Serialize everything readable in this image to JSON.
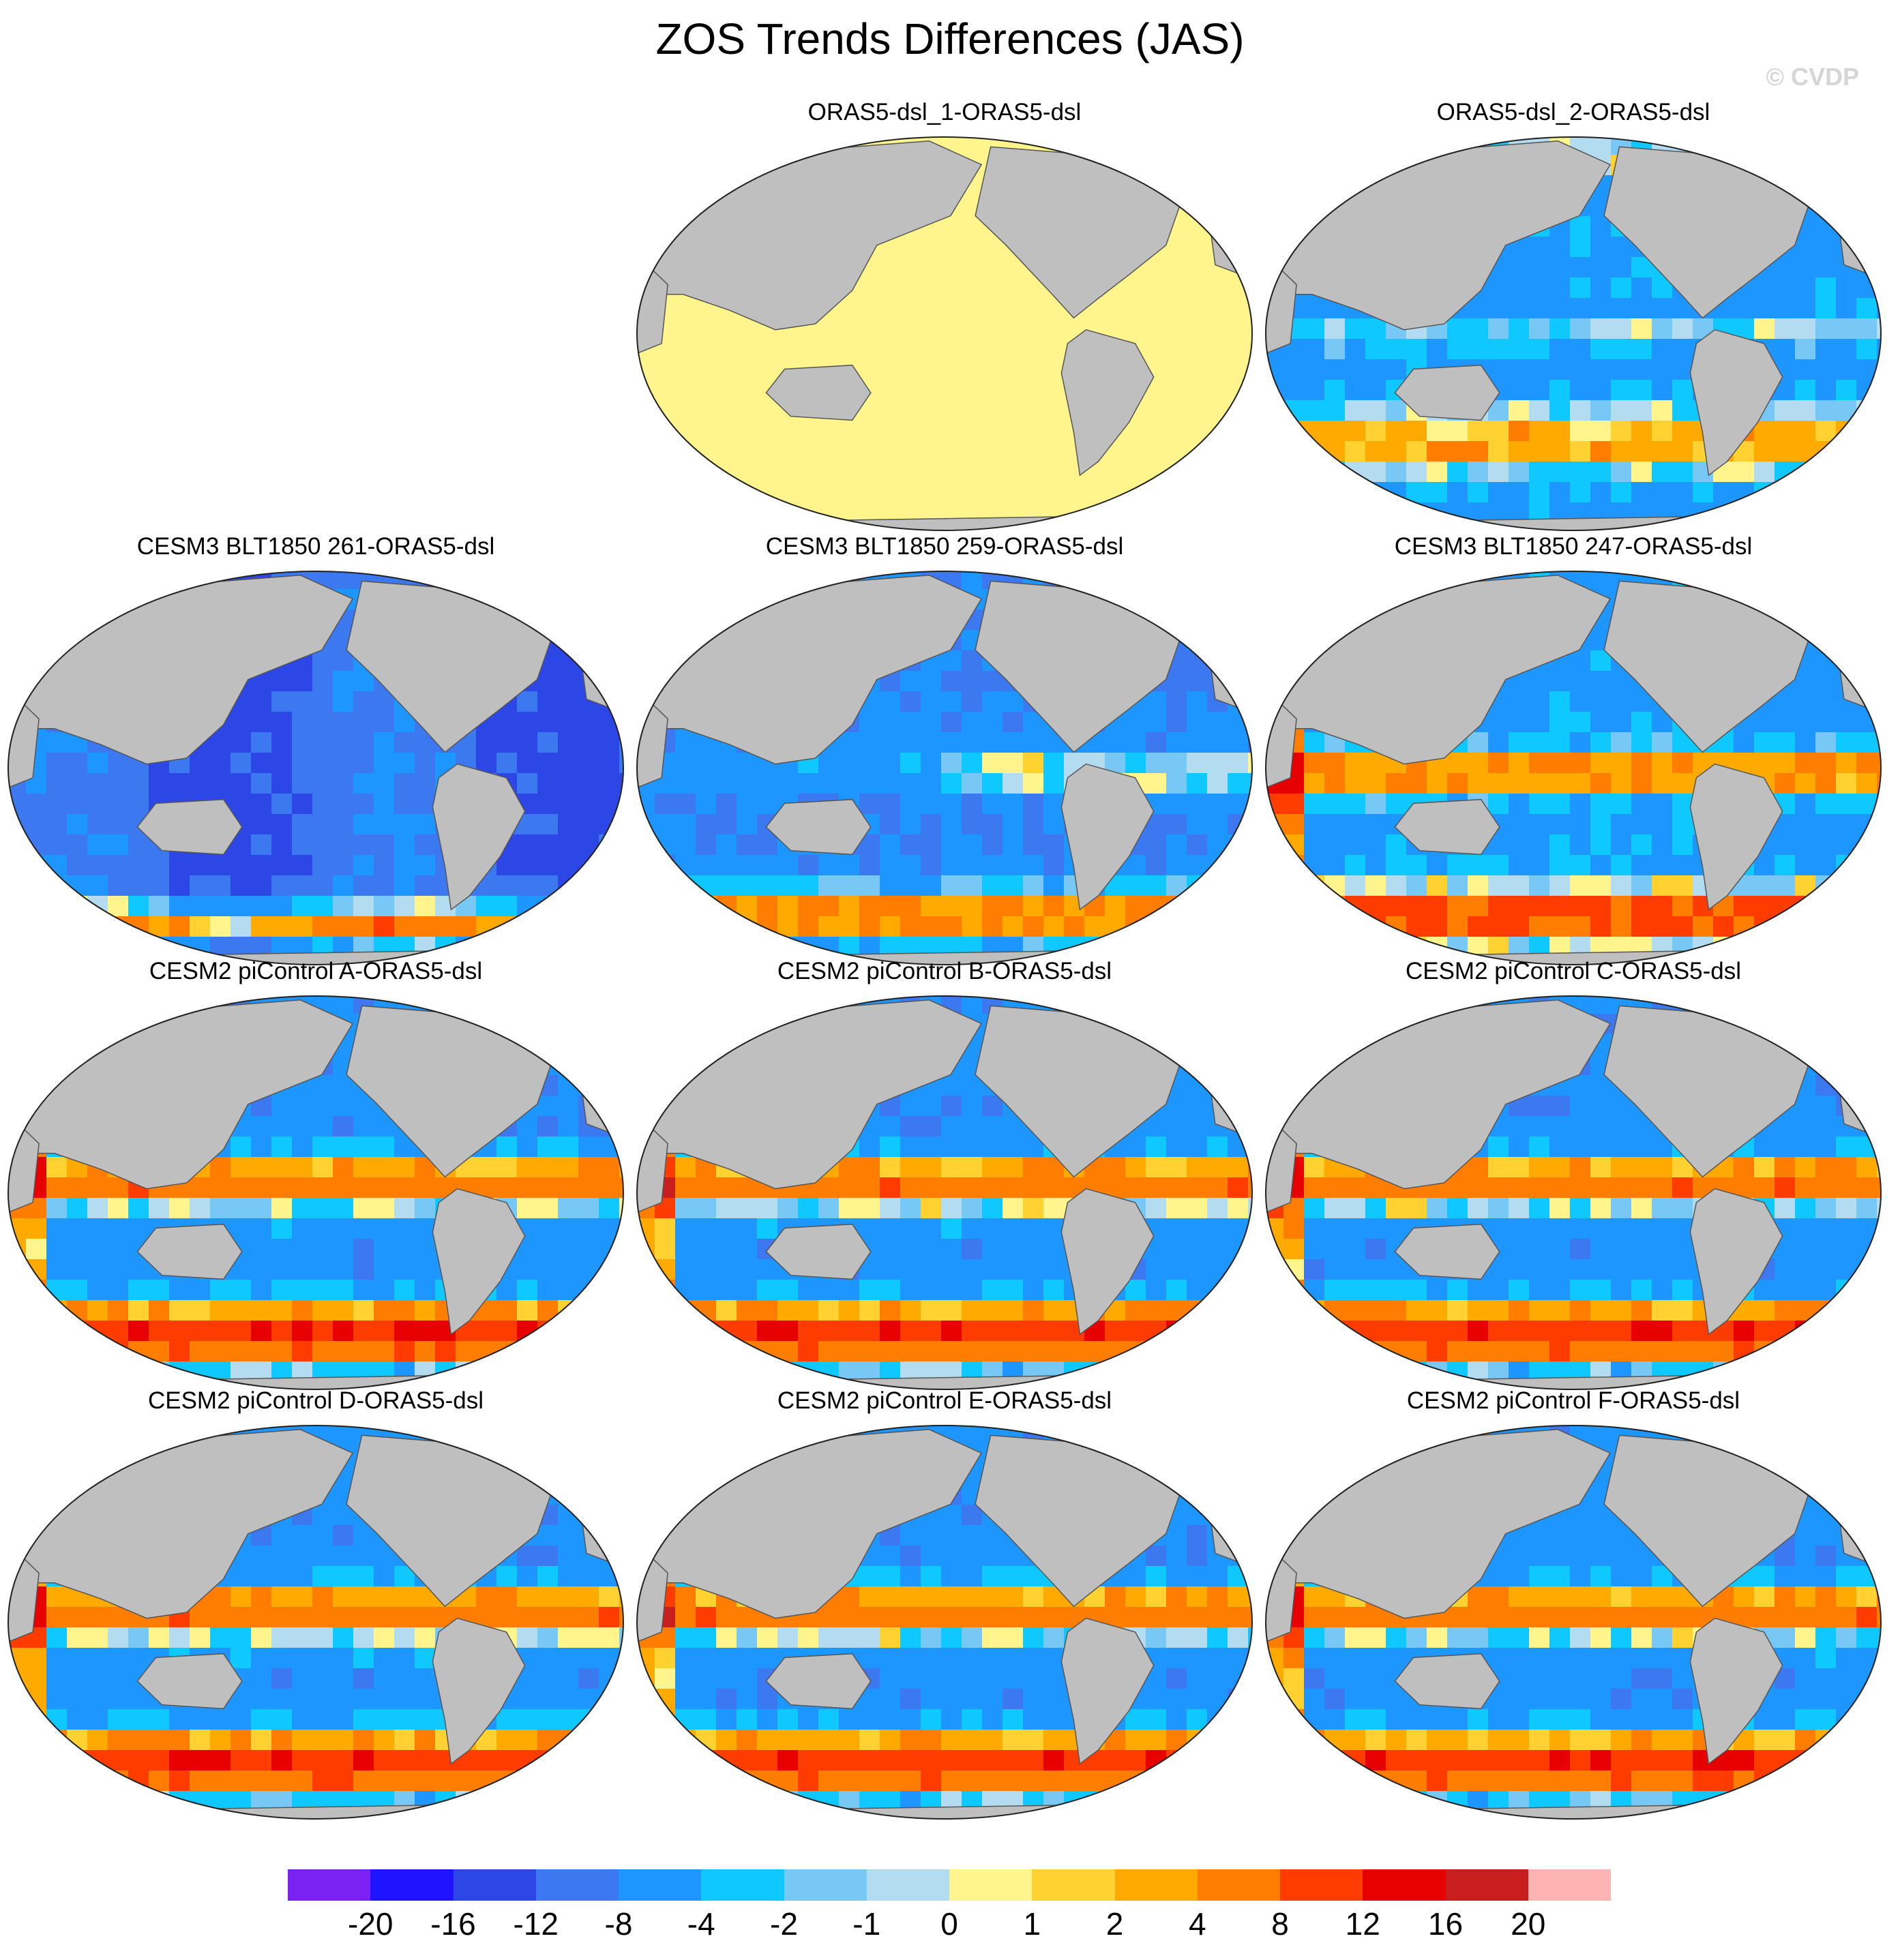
{
  "title": "ZOS Trends Differences (JAS)",
  "watermark": "© CVDP",
  "panels": [
    {
      "title": "ORAS5-dsl_1-ORAS5-dsl",
      "pattern": "uniform",
      "seed": 1
    },
    {
      "title": "ORAS5-dsl_2-ORAS5-dsl",
      "pattern": "obs",
      "seed": 2
    },
    {
      "title": "CESM3 BLT1850 261-ORAS5-dsl",
      "pattern": "cool",
      "seed": 3
    },
    {
      "title": "CESM3 BLT1850 259-ORAS5-dsl",
      "pattern": "mixed",
      "seed": 4
    },
    {
      "title": "CESM3 BLT1850 247-ORAS5-dsl",
      "pattern": "warm",
      "seed": 5
    },
    {
      "title": "CESM2 piControl A-ORAS5-dsl",
      "pattern": "cesm2",
      "seed": 6
    },
    {
      "title": "CESM2 piControl B-ORAS5-dsl",
      "pattern": "cesm2",
      "seed": 7
    },
    {
      "title": "CESM2 piControl C-ORAS5-dsl",
      "pattern": "cesm2",
      "seed": 8
    },
    {
      "title": "CESM2 piControl D-ORAS5-dsl",
      "pattern": "cesm2",
      "seed": 9
    },
    {
      "title": "CESM2 piControl E-ORAS5-dsl",
      "pattern": "cesm2",
      "seed": 10
    },
    {
      "title": "CESM2 piControl F-ORAS5-dsl",
      "pattern": "cesm2",
      "seed": 11
    }
  ],
  "colorbar": {
    "colors": [
      "#7a22f2",
      "#1e14ff",
      "#2d46e6",
      "#3c78f0",
      "#1e96ff",
      "#0fc8ff",
      "#78c8f5",
      "#b4dcf0",
      "#fff58c",
      "#ffd232",
      "#ffaa00",
      "#ff7d00",
      "#ff3c00",
      "#e60000",
      "#c81e1e",
      "#ffb4b4"
    ],
    "labels": [
      "-20",
      "-16",
      "-12",
      "-8",
      "-4",
      "-2",
      "-1",
      "0",
      "1",
      "2",
      "4",
      "8",
      "12",
      "16",
      "20"
    ]
  },
  "land_color": "#bfbfbf",
  "uniform_color": "#fff58c"
}
